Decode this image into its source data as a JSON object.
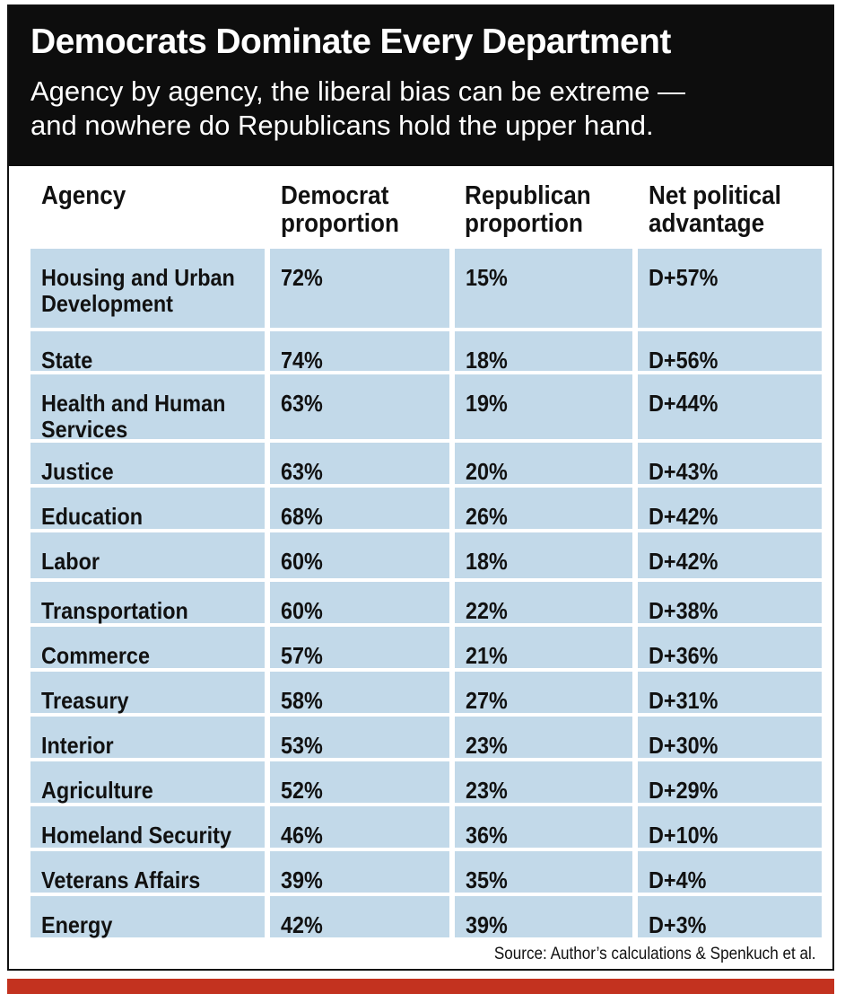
{
  "title": "Democrats Dominate Every Department",
  "subtitle_lines": [
    "Agency by agency, the liberal bias can be extreme —",
    "and nowhere do Republicans hold the upper hand."
  ],
  "columns": [
    {
      "lines": [
        "Agency"
      ]
    },
    {
      "lines": [
        "Democrat",
        "proportion"
      ]
    },
    {
      "lines": [
        "Republican",
        "proportion"
      ]
    },
    {
      "lines": [
        "Net political",
        "advantage"
      ]
    }
  ],
  "rows": [
    {
      "agency": [
        "Housing and Urban",
        "Development"
      ],
      "dem": "72%",
      "rep": "15%",
      "net": "D+57%"
    },
    {
      "agency": [
        "State"
      ],
      "dem": "74%",
      "rep": "18%",
      "net": "D+56%"
    },
    {
      "agency": [
        "Health and Human",
        "Services"
      ],
      "dem": "63%",
      "rep": "19%",
      "net": "D+44%"
    },
    {
      "agency": [
        "Justice"
      ],
      "dem": "63%",
      "rep": "20%",
      "net": "D+43%"
    },
    {
      "agency": [
        "Education"
      ],
      "dem": "68%",
      "rep": "26%",
      "net": "D+42%"
    },
    {
      "agency": [
        "Labor"
      ],
      "dem": "60%",
      "rep": "18%",
      "net": "D+42%"
    },
    {
      "agency": [
        "Transportation"
      ],
      "dem": "60%",
      "rep": "22%",
      "net": "D+38%"
    },
    {
      "agency": [
        "Commerce"
      ],
      "dem": "57%",
      "rep": "21%",
      "net": "D+36%"
    },
    {
      "agency": [
        "Treasury"
      ],
      "dem": "58%",
      "rep": "27%",
      "net": "D+31%"
    },
    {
      "agency": [
        "Interior"
      ],
      "dem": "53%",
      "rep": "23%",
      "net": "D+30%"
    },
    {
      "agency": [
        "Agriculture"
      ],
      "dem": "52%",
      "rep": "23%",
      "net": "D+29%"
    },
    {
      "agency": [
        "Homeland Security"
      ],
      "dem": "46%",
      "rep": "36%",
      "net": "D+10%"
    },
    {
      "agency": [
        "Veterans Affairs"
      ],
      "dem": "39%",
      "rep": "35%",
      "net": "D+4%"
    },
    {
      "agency": [
        "Energy"
      ],
      "dem": "42%",
      "rep": "39%",
      "net": "D+3%"
    }
  ],
  "source": "Source: Author’s calculations & Spenkuch et al.",
  "colors": {
    "header_bg": "#0d0d0d",
    "cell_bg": "#c2d9e9",
    "accent_bar": "#c3321f"
  },
  "chart_data": {
    "type": "table",
    "title": "Democrats Dominate Every Department",
    "subtitle": "Agency by agency, the liberal bias can be extreme — and nowhere do Republicans hold the upper hand.",
    "columns": [
      "Agency",
      "Democrat proportion",
      "Republican proportion",
      "Net political advantage"
    ],
    "categories": [
      "Housing and Urban Development",
      "State",
      "Health and Human Services",
      "Justice",
      "Education",
      "Labor",
      "Transportation",
      "Commerce",
      "Treasury",
      "Interior",
      "Agriculture",
      "Homeland Security",
      "Veterans Affairs",
      "Energy"
    ],
    "series": [
      {
        "name": "Democrat proportion",
        "values": [
          72,
          74,
          63,
          63,
          68,
          60,
          60,
          57,
          58,
          53,
          52,
          46,
          39,
          42
        ]
      },
      {
        "name": "Republican proportion",
        "values": [
          15,
          18,
          19,
          20,
          26,
          18,
          22,
          21,
          27,
          23,
          23,
          36,
          35,
          39
        ]
      },
      {
        "name": "Net political advantage",
        "values": [
          57,
          56,
          44,
          43,
          42,
          42,
          38,
          36,
          31,
          30,
          29,
          10,
          4,
          3
        ]
      }
    ],
    "source": "Source: Author’s calculations & Spenkuch et al."
  }
}
